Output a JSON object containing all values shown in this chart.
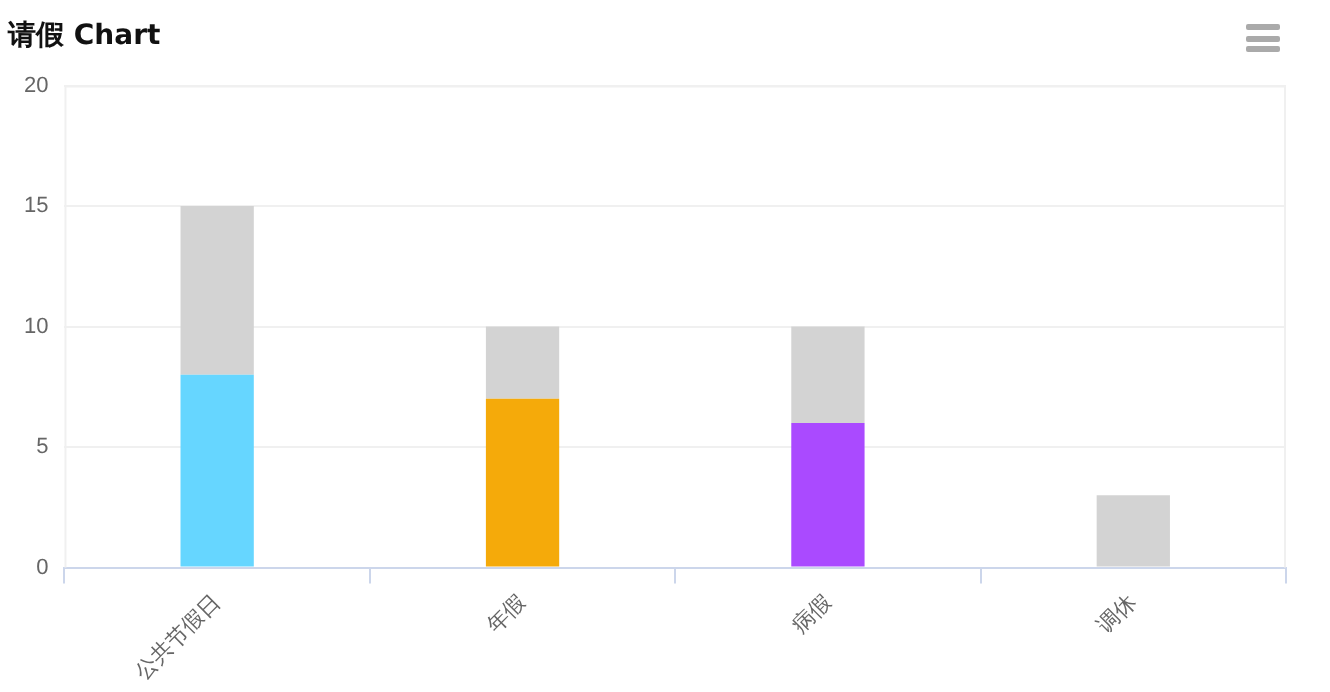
{
  "chart_data": {
    "type": "bar",
    "title": "请假 Chart",
    "stacked": true,
    "categories": [
      "公共节假日",
      "年假",
      "病假",
      "调休"
    ],
    "series": [
      {
        "colors": [
          "#66d6ff",
          "#f5aa0a",
          "#aa4aff",
          "#d3d3d3"
        ],
        "values": [
          8,
          7,
          6,
          0
        ]
      },
      {
        "color": "#d3d3d3",
        "values": [
          7,
          3,
          4,
          3
        ]
      }
    ],
    "ylim": [
      0,
      20
    ],
    "yticks": [
      0,
      5,
      10,
      15,
      20
    ],
    "grid": "y",
    "legend": false
  }
}
